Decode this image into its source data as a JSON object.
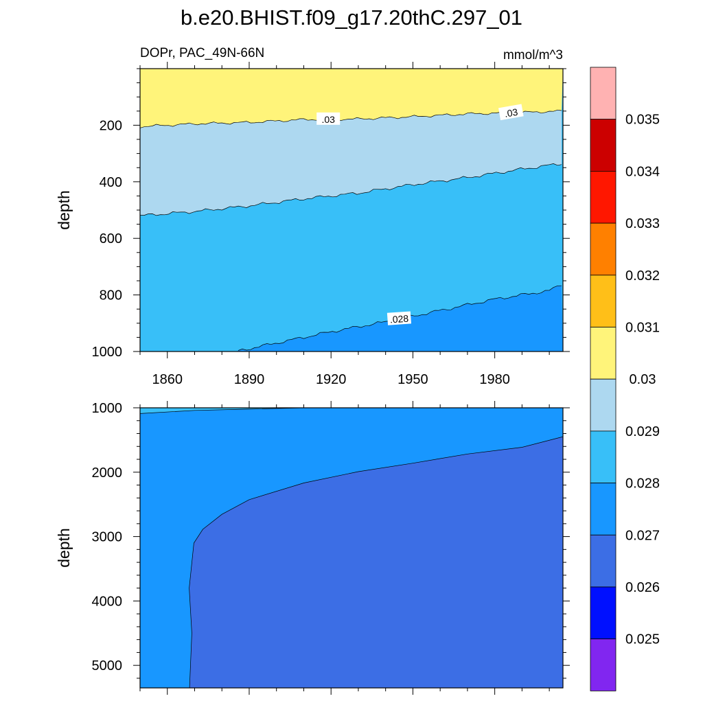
{
  "chart_data": {
    "type": "contour",
    "title": "b.e20.BHIST.f09_g17.20thC.297_01",
    "subtitle_left": "DOPr, PAC_49N-66N",
    "subtitle_right": "mmol/m^3",
    "ylabel": "depth",
    "xticks": [
      "1860",
      "1890",
      "1920",
      "1950",
      "1980"
    ],
    "xlim": [
      1850,
      2005
    ],
    "colors": {
      "c0": "#8126F0",
      "c1": "#0010FF",
      "c2": "#3C6EE5",
      "c3": "#1897FF",
      "c4": "#38BFF8",
      "c5": "#ADD8F0",
      "c6": "#FFF47A",
      "c7": "#FFBF18",
      "c8": "#FF8000",
      "c9": "#FF1700",
      "c10": "#CC0000",
      "c11": "#FFB2B2"
    },
    "colorbar": {
      "levels": [
        "0.025",
        "0.026",
        "0.027",
        "0.028",
        "0.029",
        "0.03",
        "0.031",
        "0.032",
        "0.033",
        "0.034",
        "0.035"
      ]
    },
    "panels": [
      {
        "name": "upper",
        "ylim": [
          1000,
          0
        ],
        "yticks": [
          "200",
          "400",
          "600",
          "800",
          "1000"
        ],
        "contour_labels": [
          ".03",
          ".03",
          ".028"
        ],
        "boundaries": [
          {
            "level": 0.03,
            "points": [
              [
                1850,
                205
              ],
              [
                1870,
                195
              ],
              [
                1890,
                190
              ],
              [
                1910,
                180
              ],
              [
                1930,
                178
              ],
              [
                1950,
                170
              ],
              [
                1970,
                160
              ],
              [
                1990,
                155
              ],
              [
                2005,
                150
              ]
            ]
          },
          {
            "level": 0.029,
            "points": [
              [
                1850,
                520
              ],
              [
                1870,
                505
              ],
              [
                1890,
                485
              ],
              [
                1910,
                460
              ],
              [
                1930,
                440
              ],
              [
                1950,
                410
              ],
              [
                1970,
                385
              ],
              [
                1990,
                355
              ],
              [
                2005,
                335
              ]
            ]
          },
          {
            "level": 0.028,
            "points": [
              [
                1885,
                1000
              ],
              [
                1900,
                970
              ],
              [
                1920,
                930
              ],
              [
                1940,
                895
              ],
              [
                1960,
                855
              ],
              [
                1980,
                815
              ],
              [
                2000,
                785
              ],
              [
                2005,
                760
              ]
            ]
          }
        ]
      },
      {
        "name": "lower",
        "ylim": [
          5350,
          1000
        ],
        "yticks": [
          "1000",
          "2000",
          "3000",
          "4000",
          "5000"
        ],
        "boundaries": [
          {
            "level": 0.028,
            "points": [
              [
                1850,
                1090
              ],
              [
                1870,
                1040
              ],
              [
                1890,
                1020
              ],
              [
                1910,
                1000
              ]
            ]
          },
          {
            "level": 0.027,
            "points": [
              [
                1868,
                5350
              ],
              [
                1869,
                4500
              ],
              [
                1868,
                3800
              ],
              [
                1870,
                3100
              ],
              [
                1873,
                2880
              ],
              [
                1880,
                2650
              ],
              [
                1890,
                2420
              ],
              [
                1910,
                2180
              ],
              [
                1930,
                2000
              ],
              [
                1950,
                1860
              ],
              [
                1970,
                1720
              ],
              [
                1990,
                1600
              ],
              [
                2005,
                1440
              ]
            ]
          }
        ]
      }
    ]
  }
}
